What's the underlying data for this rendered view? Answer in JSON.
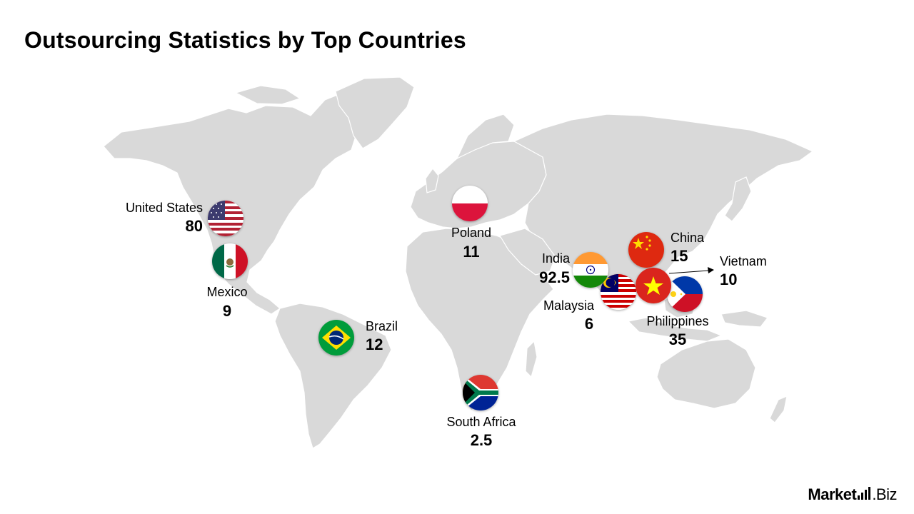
{
  "title": "Outsourcing Statistics by Top Countries",
  "brand": {
    "name_part1": "Market",
    "name_part2": ".Biz"
  },
  "colors": {
    "land": "#d9d9d9",
    "text": "#000000"
  },
  "countries": [
    {
      "name": "United States",
      "value": "80",
      "flag": "us-flag-icon"
    },
    {
      "name": "Mexico",
      "value": "9",
      "flag": "mexico-flag-icon"
    },
    {
      "name": "Brazil",
      "value": "12",
      "flag": "brazil-flag-icon"
    },
    {
      "name": "Poland",
      "value": "11",
      "flag": "poland-flag-icon"
    },
    {
      "name": "South Africa",
      "value": "2.5",
      "flag": "south-africa-flag-icon"
    },
    {
      "name": "India",
      "value": "92.5",
      "flag": "india-flag-icon"
    },
    {
      "name": "Malaysia",
      "value": "6",
      "flag": "malaysia-flag-icon"
    },
    {
      "name": "China",
      "value": "15",
      "flag": "china-flag-icon"
    },
    {
      "name": "Vietnam",
      "value": "10",
      "flag": "vietnam-flag-icon"
    },
    {
      "name": "Philippines",
      "value": "35",
      "flag": "philippines-flag-icon"
    }
  ]
}
